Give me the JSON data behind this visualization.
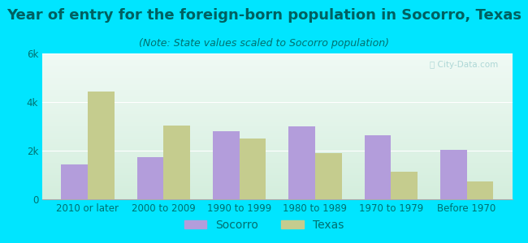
{
  "title": "Year of entry for the foreign-born population in Socorro, Texas",
  "subtitle": "(Note: State values scaled to Socorro population)",
  "categories": [
    "2010 or later",
    "2000 to 2009",
    "1990 to 1999",
    "1980 to 1989",
    "1970 to 1979",
    "Before 1970"
  ],
  "socorro_values": [
    1450,
    1750,
    2800,
    3000,
    2650,
    2050
  ],
  "texas_values": [
    4450,
    3050,
    2500,
    1900,
    1150,
    750
  ],
  "socorro_color": "#b39ddb",
  "texas_color": "#c5cc8e",
  "background_color": "#00e5ff",
  "ylim": [
    0,
    6000
  ],
  "yticks": [
    0,
    2000,
    4000,
    6000
  ],
  "ytick_labels": [
    "0",
    "2k",
    "4k",
    "6k"
  ],
  "bar_width": 0.35,
  "title_fontsize": 13,
  "subtitle_fontsize": 9,
  "tick_fontsize": 8.5,
  "legend_fontsize": 10,
  "watermark": "ⓘ City-Data.com"
}
